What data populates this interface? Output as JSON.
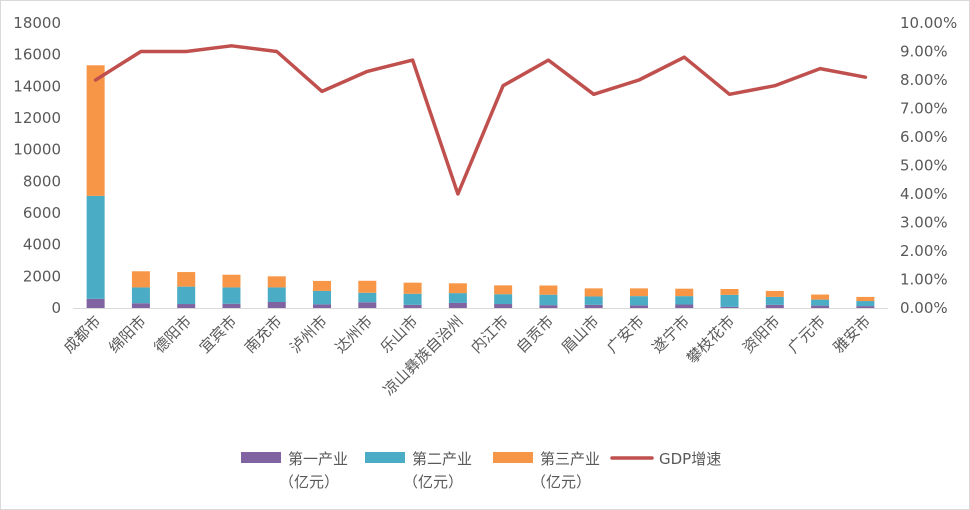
{
  "chart_data": {
    "type": "bar",
    "stacked": true,
    "secondary_type": "line",
    "categories": [
      "成都市",
      "绵阳市",
      "德阳市",
      "宜宾市",
      "南充市",
      "泸州市",
      "达州市",
      "乐山市",
      "凉山彝族自治州",
      "内江市",
      "自贡市",
      "眉山市",
      "广安市",
      "遂宁市",
      "攀枝花市",
      "资阳市",
      "广元市",
      "雅安市"
    ],
    "series": [
      {
        "name": "第一产业（亿元）",
        "axis": "left",
        "color": "#8064a2",
        "values": [
          580,
          300,
          250,
          270,
          380,
          230,
          360,
          200,
          320,
          250,
          180,
          200,
          170,
          220,
          70,
          200,
          150,
          120
        ]
      },
      {
        "name": "第二产业（亿元）",
        "axis": "left",
        "color": "#4bacc6",
        "values": [
          6500,
          1000,
          1100,
          1030,
          920,
          850,
          600,
          700,
          620,
          620,
          660,
          530,
          580,
          530,
          760,
          500,
          380,
          320
        ]
      },
      {
        "name": "第三产业（亿元）",
        "axis": "left",
        "color": "#f79646",
        "values": [
          8250,
          1020,
          920,
          800,
          700,
          630,
          760,
          700,
          620,
          560,
          580,
          510,
          490,
          470,
          370,
          380,
          320,
          260
        ]
      },
      {
        "name": "GDP增速",
        "axis": "right",
        "type": "line",
        "color": "#c0504d",
        "values": [
          8.0,
          9.0,
          9.0,
          9.2,
          9.0,
          7.6,
          8.3,
          8.7,
          4.0,
          7.8,
          8.7,
          7.5,
          8.0,
          8.8,
          7.5,
          7.8,
          8.4,
          8.1
        ]
      }
    ],
    "y_left": {
      "min": 0,
      "max": 18000,
      "ticks": [
        "0",
        "2000",
        "4000",
        "6000",
        "8000",
        "10000",
        "12000",
        "14000",
        "16000",
        "18000"
      ]
    },
    "y_right": {
      "min": 0,
      "max": 10,
      "ticks": [
        "0.00%",
        "1.00%",
        "2.00%",
        "3.00%",
        "4.00%",
        "5.00%",
        "6.00%",
        "7.00%",
        "8.00%",
        "9.00%",
        "10.00%"
      ]
    },
    "grid": false,
    "legend_position": "bottom"
  },
  "legend": [
    {
      "label_line1": "第一产业",
      "label_line2": "（亿元）",
      "color": "#8064a2",
      "kind": "bar"
    },
    {
      "label_line1": "第二产业",
      "label_line2": "（亿元）",
      "color": "#4bacc6",
      "kind": "bar"
    },
    {
      "label_line1": "第三产业",
      "label_line2": "（亿元）",
      "color": "#f79646",
      "kind": "bar"
    },
    {
      "label_line1": "GDP增速",
      "label_line2": "",
      "color": "#c0504d",
      "kind": "line"
    }
  ]
}
